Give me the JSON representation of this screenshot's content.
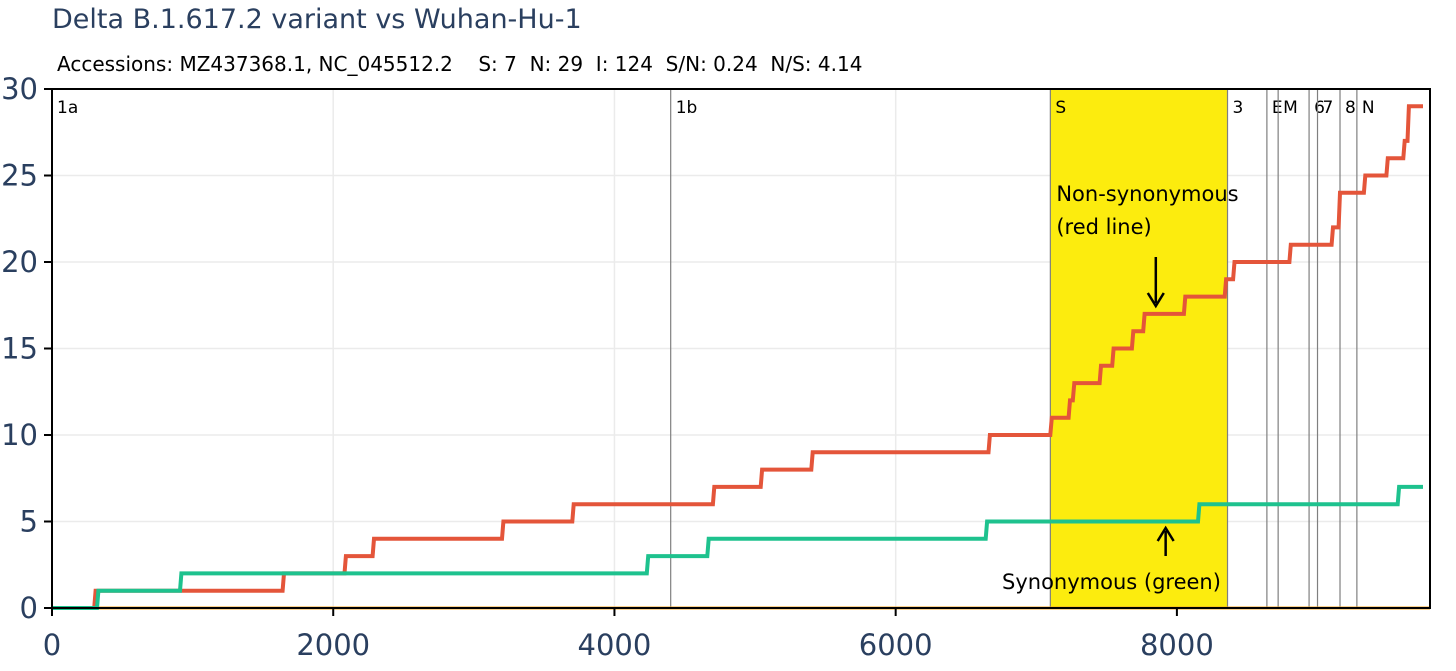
{
  "title": "Delta B.1.617.2 variant vs Wuhan-Hu-1",
  "subtitle": "Accessions: MZ437368.1, NC_045512.2    S: 7  N: 29  I: 124  S/N: 0.24  N/S: 4.14",
  "colors": {
    "nonsyn": "#e4553a",
    "syn": "#1ec28e",
    "highlight": "#fcec0e",
    "orange_baseline": "#f5a623",
    "axis_text": "#2a3f5f",
    "grid": "#ebebeb",
    "gene_line": "#7f7f7f"
  },
  "annotations": {
    "nonsyn_line1": "Non-synonymous",
    "nonsyn_line2": "(red line)",
    "syn": "Synonymous (green)",
    "down_arrow_icon": "arrow-down",
    "up_arrow_icon": "arrow-up"
  },
  "chart_data": {
    "type": "line",
    "line_shape": "step",
    "title": "Delta B.1.617.2 variant vs Wuhan-Hu-1",
    "xlim": [
      0,
      9800
    ],
    "ylim": [
      0,
      30
    ],
    "xticks": [
      0,
      2000,
      4000,
      6000,
      8000
    ],
    "yticks": [
      0,
      5,
      10,
      15,
      20,
      25,
      30
    ],
    "grid": true,
    "highlight_region": {
      "label": "S",
      "x0": 7100,
      "x1": 8360
    },
    "genes": [
      {
        "name": "1a",
        "x": 0
      },
      {
        "name": "1b",
        "x": 4400
      },
      {
        "name": "S",
        "x": 7100
      },
      {
        "name": "3",
        "x": 8360
      },
      {
        "name": "E",
        "x": 8640
      },
      {
        "name": "M",
        "x": 8720
      },
      {
        "name": "6",
        "x": 8940
      },
      {
        "name": "7",
        "x": 9000
      },
      {
        "name": "8",
        "x": 9160
      },
      {
        "name": "N",
        "x": 9280
      }
    ],
    "series": [
      {
        "key": "nonsyn",
        "x": [
          0,
          300,
          310,
          920,
          930,
          1640,
          1650,
          2080,
          2090,
          2280,
          2290,
          3200,
          3210,
          3700,
          3710,
          4700,
          4710,
          5040,
          5050,
          5400,
          5410,
          6660,
          6670,
          7100,
          7110,
          7230,
          7240,
          7260,
          7270,
          7450,
          7460,
          7540,
          7550,
          7680,
          7690,
          7760,
          7770,
          8050,
          8060,
          8340,
          8350,
          8400,
          8410,
          8800,
          8810,
          9100,
          9110,
          9150,
          9160,
          9330,
          9340,
          9490,
          9500,
          9610,
          9620,
          9640,
          9650,
          9750
        ],
        "y": [
          0,
          0,
          1,
          1,
          1,
          1,
          2,
          2,
          3,
          3,
          4,
          4,
          5,
          5,
          6,
          6,
          7,
          7,
          8,
          8,
          9,
          9,
          10,
          10,
          11,
          11,
          12,
          12,
          13,
          13,
          14,
          14,
          15,
          15,
          16,
          16,
          17,
          17,
          18,
          18,
          19,
          19,
          20,
          20,
          21,
          21,
          22,
          22,
          24,
          24,
          25,
          25,
          26,
          26,
          27,
          27,
          29,
          29
        ]
      },
      {
        "key": "syn",
        "x": [
          0,
          320,
          330,
          910,
          920,
          4230,
          4240,
          4660,
          4670,
          6640,
          6650,
          8150,
          8160,
          9570,
          9580,
          9750
        ],
        "y": [
          0,
          0,
          1,
          1,
          2,
          2,
          3,
          3,
          4,
          4,
          5,
          5,
          6,
          6,
          7,
          7
        ]
      }
    ]
  }
}
